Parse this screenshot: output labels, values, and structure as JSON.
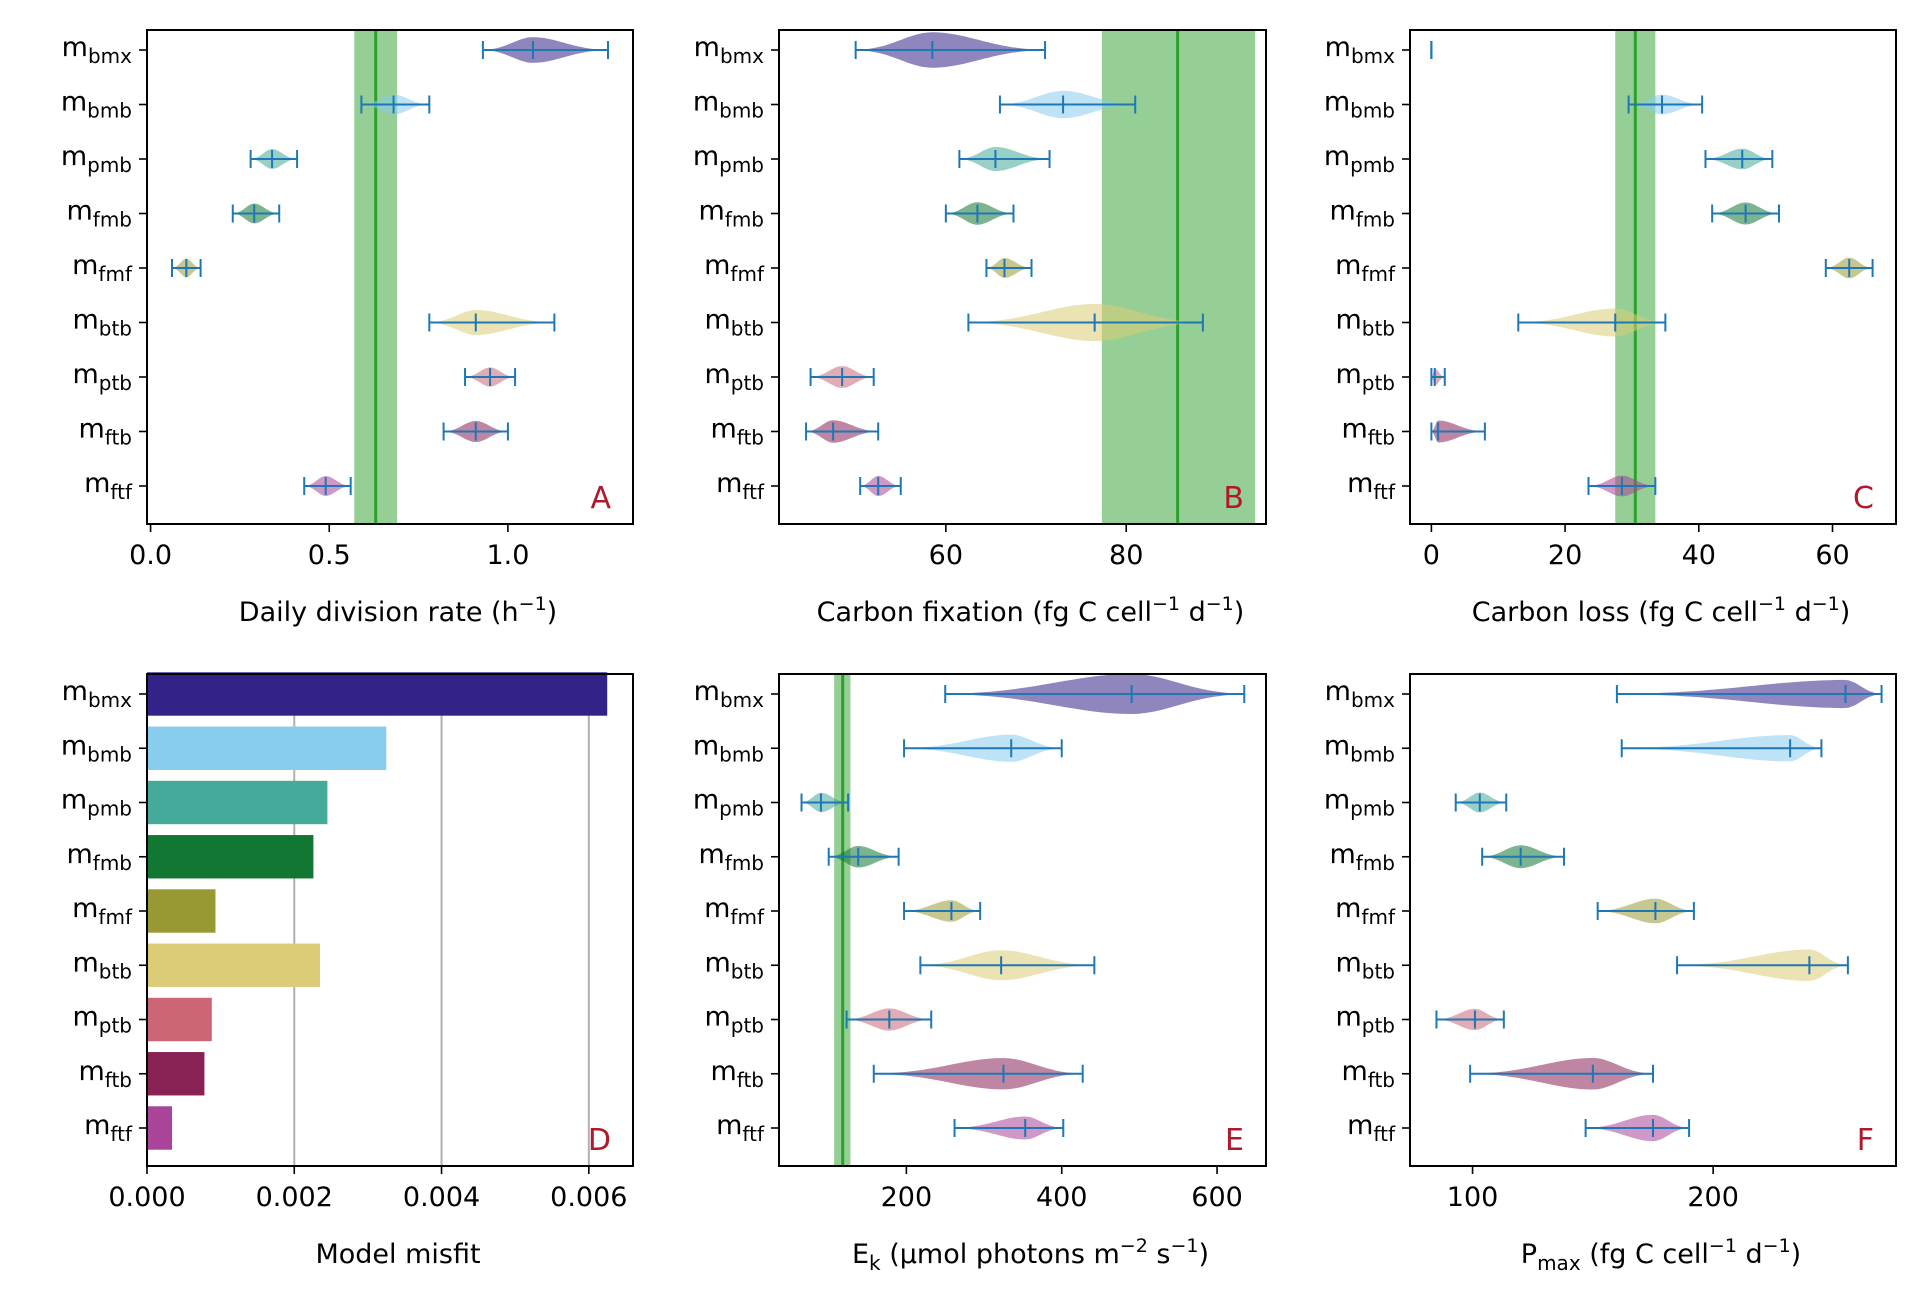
{
  "colors": {
    "m_bmx": "#332288",
    "m_bmb": "#88CCEE",
    "m_pmb": "#44AA99",
    "m_fmb": "#117733",
    "m_fmf": "#999933",
    "m_btb": "#DDCC77",
    "m_ptb": "#CC6677",
    "m_ftb": "#882255",
    "m_ftf": "#AA4499",
    "errorbar": "#1f77b4",
    "obs_band": "#2ca02c",
    "panel_letter": "#b2182b",
    "grid": "#b0b0b0"
  },
  "chart_data": [
    {
      "type": "violin",
      "panel": "A",
      "xlabel_main": "Daily division rate (h",
      "xlabel_sup": "−1",
      "xlabel_tail": ")",
      "xlim": [
        -0.01,
        1.35
      ],
      "xticks": [
        0.0,
        0.5,
        1.0
      ],
      "xtick_labels": [
        "0.0",
        "0.5",
        "1.0"
      ],
      "observation": {
        "value": 0.63,
        "low": 0.57,
        "high": 0.69
      },
      "categories": [
        {
          "base": "m",
          "sub": "bmx",
          "key": "m_bmx",
          "median": 1.07,
          "min": 0.93,
          "max": 1.28,
          "halfwidth": 0.075
        },
        {
          "base": "m",
          "sub": "bmb",
          "key": "m_bmb",
          "median": 0.68,
          "min": 0.59,
          "max": 0.78,
          "halfwidth": 0.03
        },
        {
          "base": "m",
          "sub": "pmb",
          "key": "m_pmb",
          "median": 0.34,
          "min": 0.28,
          "max": 0.41,
          "halfwidth": 0.03
        },
        {
          "base": "m",
          "sub": "fmb",
          "key": "m_fmb",
          "median": 0.29,
          "min": 0.23,
          "max": 0.36,
          "halfwidth": 0.03
        },
        {
          "base": "m",
          "sub": "fmf",
          "key": "m_fmf",
          "median": 0.1,
          "min": 0.06,
          "max": 0.14,
          "halfwidth": 0.02
        },
        {
          "base": "m",
          "sub": "btb",
          "key": "m_btb",
          "median": 0.91,
          "min": 0.78,
          "max": 1.13,
          "halfwidth": 0.07
        },
        {
          "base": "m",
          "sub": "ptb",
          "key": "m_ptb",
          "median": 0.95,
          "min": 0.88,
          "max": 1.02,
          "halfwidth": 0.025
        },
        {
          "base": "m",
          "sub": "ftb",
          "key": "m_ftb",
          "median": 0.91,
          "min": 0.82,
          "max": 1.0,
          "halfwidth": 0.04
        },
        {
          "base": "m",
          "sub": "ftf",
          "key": "m_ftf",
          "median": 0.49,
          "min": 0.43,
          "max": 0.56,
          "halfwidth": 0.03
        }
      ]
    },
    {
      "type": "violin",
      "panel": "B",
      "xlabel_main": "Carbon fixation (fg C cell",
      "xlabel_sup": "−1",
      "xlabel_mid": " d",
      "xlabel_sup2": "−1",
      "xlabel_tail": ")",
      "xlim": [
        41.5,
        95.5
      ],
      "xticks": [
        60,
        80
      ],
      "xtick_labels": [
        "60",
        "80"
      ],
      "observation": {
        "value": 85.7,
        "low": 77.3,
        "high": 94.3
      },
      "categories": [
        {
          "base": "m",
          "sub": "bmx",
          "key": "m_bmx",
          "median": 58.5,
          "min": 50.0,
          "max": 71.0,
          "halfwidth": 6.0
        },
        {
          "base": "m",
          "sub": "bmb",
          "key": "m_bmb",
          "median": 73.0,
          "min": 66.0,
          "max": 81.0,
          "halfwidth": 3.5
        },
        {
          "base": "m",
          "sub": "pmb",
          "key": "m_pmb",
          "median": 65.5,
          "min": 61.5,
          "max": 71.5,
          "halfwidth": 2.5
        },
        {
          "base": "m",
          "sub": "fmb",
          "key": "m_fmb",
          "median": 63.5,
          "min": 60.0,
          "max": 67.5,
          "halfwidth": 2.0
        },
        {
          "base": "m",
          "sub": "fmf",
          "key": "m_fmf",
          "median": 66.5,
          "min": 64.5,
          "max": 69.5,
          "halfwidth": 1.2
        },
        {
          "base": "m",
          "sub": "btb",
          "key": "m_btb",
          "median": 76.5,
          "min": 62.5,
          "max": 88.5,
          "halfwidth": 6.5
        },
        {
          "base": "m",
          "sub": "ptb",
          "key": "m_ptb",
          "median": 48.5,
          "min": 45.0,
          "max": 52.0,
          "halfwidth": 1.8
        },
        {
          "base": "m",
          "sub": "ftb",
          "key": "m_ftb",
          "median": 47.5,
          "min": 44.5,
          "max": 52.5,
          "halfwidth": 2.0
        },
        {
          "base": "m",
          "sub": "ftf",
          "key": "m_ftf",
          "median": 52.5,
          "min": 50.5,
          "max": 55.0,
          "halfwidth": 1.3
        }
      ]
    },
    {
      "type": "violin",
      "panel": "C",
      "xlabel_main": "Carbon loss (fg C cell",
      "xlabel_sup": "−1",
      "xlabel_mid": " d",
      "xlabel_sup2": "−1",
      "xlabel_tail": ")",
      "xlim": [
        -3.2,
        69.5
      ],
      "xticks": [
        0,
        20,
        40,
        60
      ],
      "xtick_labels": [
        "0",
        "20",
        "40",
        "60"
      ],
      "observation": {
        "value": 30.5,
        "low": 27.5,
        "high": 33.5
      },
      "categories": [
        {
          "base": "m",
          "sub": "bmx",
          "key": "m_bmx",
          "median": 0.0,
          "min": 0.0,
          "max": 0.0,
          "halfwidth": 0.0
        },
        {
          "base": "m",
          "sub": "bmb",
          "key": "m_bmb",
          "median": 34.5,
          "min": 29.5,
          "max": 40.5,
          "halfwidth": 1.5
        },
        {
          "base": "m",
          "sub": "pmb",
          "key": "m_pmb",
          "median": 46.5,
          "min": 41.0,
          "max": 51.0,
          "halfwidth": 2.0
        },
        {
          "base": "m",
          "sub": "fmb",
          "key": "m_fmb",
          "median": 47.0,
          "min": 42.0,
          "max": 52.0,
          "halfwidth": 2.5
        },
        {
          "base": "m",
          "sub": "fmf",
          "key": "m_fmf",
          "median": 62.5,
          "min": 59.0,
          "max": 66.0,
          "halfwidth": 2.0
        },
        {
          "base": "m",
          "sub": "btb",
          "key": "m_btb",
          "median": 27.5,
          "min": 13.0,
          "max": 35.0,
          "halfwidth": 5.0
        },
        {
          "base": "m",
          "sub": "ptb",
          "key": "m_ptb",
          "median": 0.5,
          "min": 0.0,
          "max": 2.0,
          "halfwidth": 0.4
        },
        {
          "base": "m",
          "sub": "ftb",
          "key": "m_ftb",
          "median": 1.0,
          "min": 0.0,
          "max": 8.0,
          "halfwidth": 2.5
        },
        {
          "base": "m",
          "sub": "ftf",
          "key": "m_ftf",
          "median": 28.5,
          "min": 23.5,
          "max": 33.5,
          "halfwidth": 2.0
        }
      ]
    },
    {
      "type": "bar",
      "orientation": "horizontal",
      "panel": "D",
      "xlabel": "Model misfit",
      "xlim": [
        0,
        0.0066
      ],
      "xticks": [
        0.0,
        0.002,
        0.004,
        0.006
      ],
      "xtick_labels": [
        "0.000",
        "0.002",
        "0.004",
        "0.006"
      ],
      "grid": "vertical",
      "categories": [
        {
          "base": "m",
          "sub": "bmx",
          "key": "m_bmx",
          "value": 0.00625
        },
        {
          "base": "m",
          "sub": "bmb",
          "key": "m_bmb",
          "value": 0.00325
        },
        {
          "base": "m",
          "sub": "pmb",
          "key": "m_pmb",
          "value": 0.00245
        },
        {
          "base": "m",
          "sub": "fmb",
          "key": "m_fmb",
          "value": 0.00226
        },
        {
          "base": "m",
          "sub": "fmf",
          "key": "m_fmf",
          "value": 0.00093
        },
        {
          "base": "m",
          "sub": "btb",
          "key": "m_btb",
          "value": 0.00235
        },
        {
          "base": "m",
          "sub": "ptb",
          "key": "m_ptb",
          "value": 0.00088
        },
        {
          "base": "m",
          "sub": "ftb",
          "key": "m_ftb",
          "value": 0.00078
        },
        {
          "base": "m",
          "sub": "ftf",
          "key": "m_ftf",
          "value": 0.00034
        }
      ]
    },
    {
      "type": "violin",
      "panel": "E",
      "xlabel_main": "E",
      "xlabel_sub": "k",
      "xlabel_mid": " (μmol photons m",
      "xlabel_sup": "−2",
      "xlabel_mid2": " s",
      "xlabel_sup2": "−1",
      "xlabel_tail": ")",
      "xlim": [
        36,
        663
      ],
      "xticks": [
        200,
        400,
        600
      ],
      "xtick_labels": [
        "200",
        "400",
        "600"
      ],
      "observation": {
        "value": 118,
        "low": 107,
        "high": 128
      },
      "categories": [
        {
          "base": "m",
          "sub": "bmx",
          "key": "m_bmx",
          "median": 490,
          "min": 250,
          "max": 635,
          "halfwidth": 95
        },
        {
          "base": "m",
          "sub": "bmb",
          "key": "m_bmb",
          "median": 335,
          "min": 197,
          "max": 400,
          "halfwidth": 40
        },
        {
          "base": "m",
          "sub": "pmb",
          "key": "m_pmb",
          "median": 90,
          "min": 65,
          "max": 125,
          "halfwidth": 12
        },
        {
          "base": "m",
          "sub": "fmb",
          "key": "m_fmb",
          "median": 138,
          "min": 100,
          "max": 190,
          "halfwidth": 20
        },
        {
          "base": "m",
          "sub": "fmf",
          "key": "m_fmf",
          "median": 258,
          "min": 197,
          "max": 295,
          "halfwidth": 20
        },
        {
          "base": "m",
          "sub": "btb",
          "key": "m_btb",
          "median": 322,
          "min": 218,
          "max": 442,
          "halfwidth": 50
        },
        {
          "base": "m",
          "sub": "ptb",
          "key": "m_ptb",
          "median": 178,
          "min": 123,
          "max": 232,
          "halfwidth": 22
        },
        {
          "base": "m",
          "sub": "ftb",
          "key": "m_ftb",
          "median": 325,
          "min": 158,
          "max": 427,
          "halfwidth": 55
        },
        {
          "base": "m",
          "sub": "ftf",
          "key": "m_ftf",
          "median": 353,
          "min": 262,
          "max": 402,
          "halfwidth": 25
        }
      ]
    },
    {
      "type": "violin",
      "panel": "F",
      "xlabel_main": "P",
      "xlabel_sub": "max",
      "xlabel_mid": " (fg C cell",
      "xlabel_sup": "−1",
      "xlabel_mid2": " d",
      "xlabel_sup2": "−1",
      "xlabel_tail": ")",
      "xlim": [
        74,
        276
      ],
      "xticks": [
        100,
        200
      ],
      "xtick_labels": [
        "100",
        "200"
      ],
      "categories": [
        {
          "base": "m",
          "sub": "bmx",
          "key": "m_bmx",
          "median": 255,
          "min": 160,
          "max": 270,
          "halfwidth": 14
        },
        {
          "base": "m",
          "sub": "bmb",
          "key": "m_bmb",
          "median": 232,
          "min": 162,
          "max": 245,
          "halfwidth": 12
        },
        {
          "base": "m",
          "sub": "pmb",
          "key": "m_pmb",
          "median": 103,
          "min": 93,
          "max": 114,
          "halfwidth": 4.5
        },
        {
          "base": "m",
          "sub": "fmb",
          "key": "m_fmb",
          "median": 120,
          "min": 104,
          "max": 138,
          "halfwidth": 8
        },
        {
          "base": "m",
          "sub": "fmf",
          "key": "m_fmf",
          "median": 176,
          "min": 152,
          "max": 192,
          "halfwidth": 10
        },
        {
          "base": "m",
          "sub": "btb",
          "key": "m_btb",
          "median": 240,
          "min": 185,
          "max": 256,
          "halfwidth": 18
        },
        {
          "base": "m",
          "sub": "ptb",
          "key": "m_ptb",
          "median": 101,
          "min": 85,
          "max": 113,
          "halfwidth": 6
        },
        {
          "base": "m",
          "sub": "ftb",
          "key": "m_ftb",
          "median": 150,
          "min": 99,
          "max": 175,
          "halfwidth": 18
        },
        {
          "base": "m",
          "sub": "ftf",
          "key": "m_ftf",
          "median": 175,
          "min": 147,
          "max": 190,
          "halfwidth": 12
        }
      ]
    }
  ]
}
